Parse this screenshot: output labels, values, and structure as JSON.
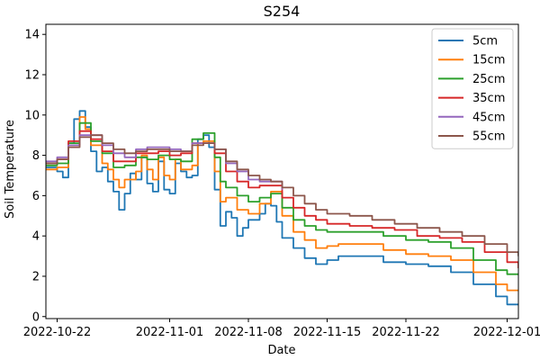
{
  "chart_data": {
    "type": "line",
    "title": "S254",
    "xlabel": "Date",
    "ylabel": "Soil Temperature",
    "x_ticks": [
      "2022-10-22",
      "2022-11-01",
      "2022-11-08",
      "2022-11-15",
      "2022-11-22",
      "2022-12-01"
    ],
    "xlim": [
      "2022-10-21",
      "2022-12-02"
    ],
    "y_ticks": [
      0,
      2,
      4,
      6,
      8,
      10,
      12,
      14
    ],
    "ylim": [
      -0.1,
      14.5
    ],
    "grid": false,
    "legend_position": "top-right",
    "series": [
      {
        "name": "5cm",
        "color": "#1f77b4",
        "points": [
          [
            "2022-10-21",
            7.4
          ],
          [
            "2022-10-22",
            7.2
          ],
          [
            "2022-10-22 12:00",
            6.9
          ],
          [
            "2022-10-23",
            8.6
          ],
          [
            "2022-10-23 12:00",
            9.8
          ],
          [
            "2022-10-24",
            10.2
          ],
          [
            "2022-10-24 12:00",
            9.4
          ],
          [
            "2022-10-25",
            8.2
          ],
          [
            "2022-10-25 12:00",
            7.2
          ],
          [
            "2022-10-26",
            7.4
          ],
          [
            "2022-10-26 12:00",
            6.7
          ],
          [
            "2022-10-27",
            6.2
          ],
          [
            "2022-10-27 12:00",
            5.3
          ],
          [
            "2022-10-28",
            6.1
          ],
          [
            "2022-10-28 12:00",
            7.1
          ],
          [
            "2022-10-29",
            6.8
          ],
          [
            "2022-10-29 12:00",
            7.9
          ],
          [
            "2022-10-30",
            6.6
          ],
          [
            "2022-10-30 12:00",
            6.2
          ],
          [
            "2022-10-31",
            7.7
          ],
          [
            "2022-10-31 12:00",
            6.3
          ],
          [
            "2022-11-01",
            6.1
          ],
          [
            "2022-11-01 12:00",
            7.6
          ],
          [
            "2022-11-02",
            7.2
          ],
          [
            "2022-11-02 12:00",
            6.9
          ],
          [
            "2022-11-03",
            7.0
          ],
          [
            "2022-11-03 12:00",
            8.8
          ],
          [
            "2022-11-04",
            9.0
          ],
          [
            "2022-11-04 12:00",
            8.4
          ],
          [
            "2022-11-05",
            6.3
          ],
          [
            "2022-11-05 12:00",
            4.5
          ],
          [
            "2022-11-06",
            5.2
          ],
          [
            "2022-11-06 12:00",
            4.9
          ],
          [
            "2022-11-07",
            4.0
          ],
          [
            "2022-11-07 12:00",
            4.4
          ],
          [
            "2022-11-08",
            4.8
          ],
          [
            "2022-11-09",
            5.1
          ],
          [
            "2022-11-09 12:00",
            5.6
          ],
          [
            "2022-11-10",
            5.5
          ],
          [
            "2022-11-10 12:00",
            4.7
          ],
          [
            "2022-11-11",
            3.9
          ],
          [
            "2022-11-12",
            3.4
          ],
          [
            "2022-11-13",
            2.9
          ],
          [
            "2022-11-14",
            2.6
          ],
          [
            "2022-11-15",
            2.8
          ],
          [
            "2022-11-16",
            3.0
          ],
          [
            "2022-11-18",
            3.0
          ],
          [
            "2022-11-20",
            2.7
          ],
          [
            "2022-11-22",
            2.6
          ],
          [
            "2022-11-24",
            2.5
          ],
          [
            "2022-11-26",
            2.2
          ],
          [
            "2022-11-28",
            1.6
          ],
          [
            "2022-11-30",
            1.0
          ],
          [
            "2022-12-01",
            0.6
          ],
          [
            "2022-12-02",
            0.6
          ]
        ]
      },
      {
        "name": "15cm",
        "color": "#ff7f0e",
        "points": [
          [
            "2022-10-21",
            7.3
          ],
          [
            "2022-10-22",
            7.4
          ],
          [
            "2022-10-23",
            8.5
          ],
          [
            "2022-10-24",
            9.9
          ],
          [
            "2022-10-24 12:00",
            9.3
          ],
          [
            "2022-10-25",
            8.5
          ],
          [
            "2022-10-26",
            7.6
          ],
          [
            "2022-10-26 12:00",
            7.3
          ],
          [
            "2022-10-27",
            6.8
          ],
          [
            "2022-10-27 12:00",
            6.4
          ],
          [
            "2022-10-28",
            6.8
          ],
          [
            "2022-10-29",
            7.2
          ],
          [
            "2022-10-29 12:00",
            8.0
          ],
          [
            "2022-10-30",
            7.3
          ],
          [
            "2022-10-30 12:00",
            6.8
          ],
          [
            "2022-10-31",
            7.9
          ],
          [
            "2022-10-31 12:00",
            7.0
          ],
          [
            "2022-11-01",
            6.8
          ],
          [
            "2022-11-01 12:00",
            7.8
          ],
          [
            "2022-11-02",
            7.3
          ],
          [
            "2022-11-03",
            7.5
          ],
          [
            "2022-11-03 12:00",
            8.6
          ],
          [
            "2022-11-04",
            8.7
          ],
          [
            "2022-11-05",
            7.2
          ],
          [
            "2022-11-05 12:00",
            5.7
          ],
          [
            "2022-11-06",
            5.9
          ],
          [
            "2022-11-07",
            5.3
          ],
          [
            "2022-11-08",
            5.1
          ],
          [
            "2022-11-09",
            5.6
          ],
          [
            "2022-11-10",
            6.2
          ],
          [
            "2022-11-11",
            5.0
          ],
          [
            "2022-11-12",
            4.2
          ],
          [
            "2022-11-13",
            3.8
          ],
          [
            "2022-11-14",
            3.4
          ],
          [
            "2022-11-15",
            3.5
          ],
          [
            "2022-11-16",
            3.6
          ],
          [
            "2022-11-18",
            3.6
          ],
          [
            "2022-11-20",
            3.3
          ],
          [
            "2022-11-22",
            3.1
          ],
          [
            "2022-11-24",
            3.0
          ],
          [
            "2022-11-26",
            2.8
          ],
          [
            "2022-11-28",
            2.2
          ],
          [
            "2022-11-30",
            1.6
          ],
          [
            "2022-12-01",
            1.3
          ],
          [
            "2022-12-02",
            1.3
          ]
        ]
      },
      {
        "name": "25cm",
        "color": "#2ca02c",
        "points": [
          [
            "2022-10-21",
            7.5
          ],
          [
            "2022-10-22",
            7.6
          ],
          [
            "2022-10-23",
            8.6
          ],
          [
            "2022-10-24",
            9.6
          ],
          [
            "2022-10-25",
            8.7
          ],
          [
            "2022-10-26",
            8.1
          ],
          [
            "2022-10-27",
            7.4
          ],
          [
            "2022-10-28",
            7.5
          ],
          [
            "2022-10-29",
            7.9
          ],
          [
            "2022-10-30",
            7.8
          ],
          [
            "2022-10-31",
            8.0
          ],
          [
            "2022-11-01",
            7.8
          ],
          [
            "2022-11-02",
            7.7
          ],
          [
            "2022-11-03",
            8.8
          ],
          [
            "2022-11-04",
            9.1
          ],
          [
            "2022-11-05",
            7.9
          ],
          [
            "2022-11-05 12:00",
            6.7
          ],
          [
            "2022-11-06",
            6.4
          ],
          [
            "2022-11-07",
            6.0
          ],
          [
            "2022-11-08",
            5.7
          ],
          [
            "2022-11-09",
            5.9
          ],
          [
            "2022-11-10",
            6.1
          ],
          [
            "2022-11-11",
            5.4
          ],
          [
            "2022-11-12",
            4.8
          ],
          [
            "2022-11-13",
            4.5
          ],
          [
            "2022-11-14",
            4.3
          ],
          [
            "2022-11-15",
            4.2
          ],
          [
            "2022-11-18",
            4.2
          ],
          [
            "2022-11-20",
            4.0
          ],
          [
            "2022-11-22",
            3.8
          ],
          [
            "2022-11-24",
            3.7
          ],
          [
            "2022-11-26",
            3.4
          ],
          [
            "2022-11-28",
            2.8
          ],
          [
            "2022-11-30",
            2.3
          ],
          [
            "2022-12-01",
            2.1
          ],
          [
            "2022-12-02",
            2.1
          ]
        ]
      },
      {
        "name": "35cm",
        "color": "#d62728",
        "points": [
          [
            "2022-10-21",
            7.6
          ],
          [
            "2022-10-22",
            7.8
          ],
          [
            "2022-10-23",
            8.7
          ],
          [
            "2022-10-24",
            9.2
          ],
          [
            "2022-10-25",
            8.8
          ],
          [
            "2022-10-26",
            8.2
          ],
          [
            "2022-10-27",
            7.7
          ],
          [
            "2022-10-28",
            7.7
          ],
          [
            "2022-10-29",
            8.1
          ],
          [
            "2022-10-30",
            8.1
          ],
          [
            "2022-10-31",
            8.2
          ],
          [
            "2022-11-01",
            8.0
          ],
          [
            "2022-11-02",
            8.1
          ],
          [
            "2022-11-03",
            8.6
          ],
          [
            "2022-11-04",
            8.6
          ],
          [
            "2022-11-05",
            8.1
          ],
          [
            "2022-11-06",
            7.2
          ],
          [
            "2022-11-07",
            6.7
          ],
          [
            "2022-11-08",
            6.4
          ],
          [
            "2022-11-09",
            6.5
          ],
          [
            "2022-11-10",
            6.5
          ],
          [
            "2022-11-11",
            5.9
          ],
          [
            "2022-11-12",
            5.4
          ],
          [
            "2022-11-13",
            5.0
          ],
          [
            "2022-11-14",
            4.8
          ],
          [
            "2022-11-15",
            4.6
          ],
          [
            "2022-11-17",
            4.5
          ],
          [
            "2022-11-19",
            4.4
          ],
          [
            "2022-11-21",
            4.3
          ],
          [
            "2022-11-23",
            4.0
          ],
          [
            "2022-11-25",
            3.9
          ],
          [
            "2022-11-27",
            3.7
          ],
          [
            "2022-11-29",
            3.2
          ],
          [
            "2022-12-01",
            2.7
          ],
          [
            "2022-12-02",
            2.4
          ]
        ]
      },
      {
        "name": "45cm",
        "color": "#9467bd",
        "points": [
          [
            "2022-10-21",
            7.7
          ],
          [
            "2022-10-22",
            7.9
          ],
          [
            "2022-10-23",
            8.5
          ],
          [
            "2022-10-24",
            9.0
          ],
          [
            "2022-10-25",
            9.0
          ],
          [
            "2022-10-26",
            8.5
          ],
          [
            "2022-10-27",
            8.1
          ],
          [
            "2022-10-28",
            7.9
          ],
          [
            "2022-10-29",
            8.3
          ],
          [
            "2022-10-30",
            8.4
          ],
          [
            "2022-10-31",
            8.4
          ],
          [
            "2022-11-01",
            8.3
          ],
          [
            "2022-11-02",
            8.2
          ],
          [
            "2022-11-03",
            8.6
          ],
          [
            "2022-11-04",
            8.6
          ],
          [
            "2022-11-05",
            8.3
          ],
          [
            "2022-11-06",
            7.6
          ],
          [
            "2022-11-07",
            7.2
          ],
          [
            "2022-11-08",
            6.8
          ],
          [
            "2022-11-09",
            6.7
          ],
          [
            "2022-11-10",
            6.7
          ],
          [
            "2022-11-11",
            6.3
          ]
        ]
      },
      {
        "name": "55cm",
        "color": "#8c564b",
        "points": [
          [
            "2022-10-21",
            7.6
          ],
          [
            "2022-10-22",
            7.8
          ],
          [
            "2022-10-23",
            8.4
          ],
          [
            "2022-10-24",
            8.9
          ],
          [
            "2022-10-25",
            9.0
          ],
          [
            "2022-10-26",
            8.6
          ],
          [
            "2022-10-27",
            8.3
          ],
          [
            "2022-10-28",
            8.1
          ],
          [
            "2022-10-29",
            8.2
          ],
          [
            "2022-10-30",
            8.3
          ],
          [
            "2022-10-31",
            8.3
          ],
          [
            "2022-11-01",
            8.2
          ],
          [
            "2022-11-02",
            8.2
          ],
          [
            "2022-11-03",
            8.5
          ],
          [
            "2022-11-04",
            8.6
          ],
          [
            "2022-11-05",
            8.3
          ],
          [
            "2022-11-06",
            7.7
          ],
          [
            "2022-11-07",
            7.3
          ],
          [
            "2022-11-08",
            7.0
          ],
          [
            "2022-11-09",
            6.8
          ],
          [
            "2022-11-10",
            6.7
          ],
          [
            "2022-11-11",
            6.4
          ],
          [
            "2022-11-12",
            6.0
          ],
          [
            "2022-11-13",
            5.6
          ],
          [
            "2022-11-14",
            5.3
          ],
          [
            "2022-11-15",
            5.1
          ],
          [
            "2022-11-17",
            5.0
          ],
          [
            "2022-11-19",
            4.8
          ],
          [
            "2022-11-21",
            4.6
          ],
          [
            "2022-11-23",
            4.4
          ],
          [
            "2022-11-25",
            4.2
          ],
          [
            "2022-11-27",
            4.0
          ],
          [
            "2022-11-29",
            3.6
          ],
          [
            "2022-12-01",
            3.2
          ],
          [
            "2022-12-02",
            3.0
          ]
        ]
      }
    ]
  }
}
